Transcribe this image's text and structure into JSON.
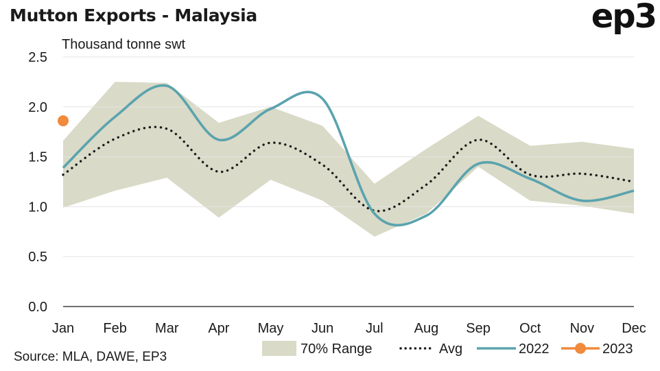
{
  "header": {
    "title": "Mutton Exports - Malaysia",
    "logo": "ep3",
    "source": "Source: MLA, DAWE, EP3"
  },
  "chart_data": {
    "type": "line",
    "title": "Mutton Exports - Malaysia",
    "ylabel": "Thousand tonne swt",
    "xlabel": "",
    "categories": [
      "Jan",
      "Feb",
      "Mar",
      "Apr",
      "May",
      "Jun",
      "Jul",
      "Aug",
      "Sep",
      "Oct",
      "Nov",
      "Dec"
    ],
    "ylim": [
      0,
      2.5
    ],
    "yticks": [
      0.0,
      0.5,
      1.0,
      1.5,
      2.0,
      2.5
    ],
    "ytick_labels": [
      "0.0",
      "0.5",
      "1.0",
      "1.5",
      "2.0",
      "2.5"
    ],
    "grid": true,
    "legend_position": "bottom-right",
    "range_band": {
      "name": "70% Range",
      "color": "#d9dac7",
      "upper": [
        1.66,
        2.25,
        2.24,
        1.84,
        2.0,
        1.81,
        1.23,
        1.58,
        1.91,
        1.61,
        1.65,
        1.58
      ],
      "lower": [
        0.99,
        1.16,
        1.29,
        0.89,
        1.27,
        1.06,
        0.7,
        0.93,
        1.4,
        1.06,
        1.01,
        0.93
      ]
    },
    "series": [
      {
        "name": "Avg",
        "style": "dotted",
        "color": "#1a1a1a",
        "values": [
          1.32,
          1.68,
          1.78,
          1.35,
          1.64,
          1.42,
          0.96,
          1.22,
          1.67,
          1.32,
          1.33,
          1.25
        ]
      },
      {
        "name": "2022",
        "style": "solid",
        "color": "#5aa3ae",
        "values": [
          1.39,
          1.9,
          2.21,
          1.67,
          1.98,
          2.08,
          0.93,
          0.91,
          1.43,
          1.28,
          1.06,
          1.16
        ]
      },
      {
        "name": "2023",
        "style": "marker",
        "color": "#f08a3c",
        "values": [
          1.86,
          null,
          null,
          null,
          null,
          null,
          null,
          null,
          null,
          null,
          null,
          null
        ]
      }
    ],
    "colors": {
      "grid": "#e3e3e3",
      "axis": "#1a1a1a"
    }
  }
}
